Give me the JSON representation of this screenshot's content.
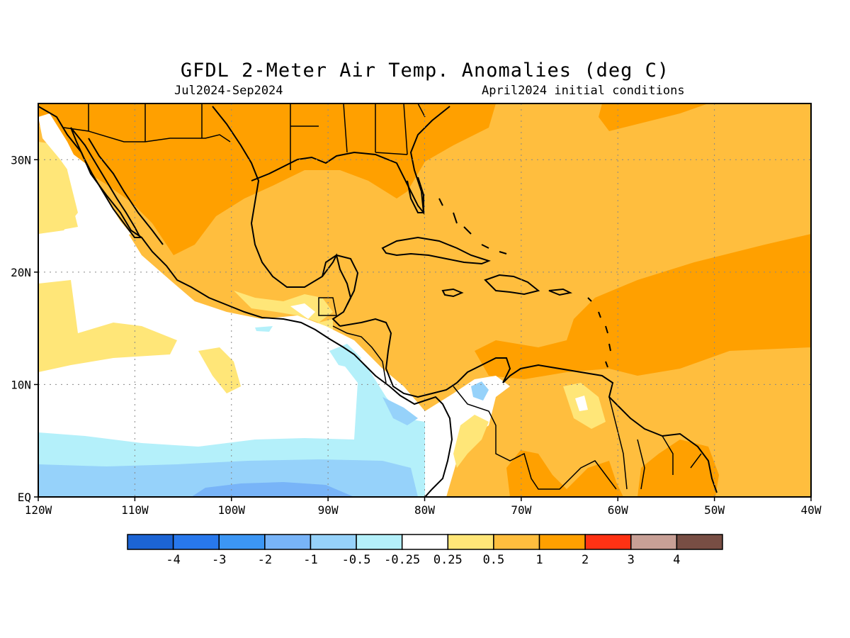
{
  "title": "GFDL 2-Meter Air Temp. Anomalies (deg C)",
  "period": "Jul2024-Sep2024",
  "initial_conditions": "April2024 initial conditions",
  "map": {
    "lon_range": [
      -120,
      -40
    ],
    "lat_range": [
      0,
      35
    ],
    "lon_ticks": [
      {
        "value": -120,
        "label": "120W"
      },
      {
        "value": -110,
        "label": "110W"
      },
      {
        "value": -100,
        "label": "100W"
      },
      {
        "value": -90,
        "label": "90W"
      },
      {
        "value": -80,
        "label": "80W"
      },
      {
        "value": -70,
        "label": "70W"
      },
      {
        "value": -60,
        "label": "60W"
      },
      {
        "value": -50,
        "label": "50W"
      },
      {
        "value": -40,
        "label": "40W"
      }
    ],
    "lat_ticks": [
      {
        "value": 0,
        "label": "EQ"
      },
      {
        "value": 10,
        "label": "10N"
      },
      {
        "value": 20,
        "label": "20N"
      },
      {
        "value": 30,
        "label": "30N"
      }
    ],
    "grid": "dotted"
  },
  "colorbar": {
    "colors": [
      "#1c64d4",
      "#2878ec",
      "#3c96f4",
      "#78b4f8",
      "#96d2fa",
      "#b4f0fa",
      "#ffffff",
      "#ffe678",
      "#ffbe3e",
      "#ffa000",
      "#ff3214",
      "#c8a096",
      "#784e44"
    ],
    "labels": [
      "-4",
      "-3",
      "-2",
      "-1",
      "-0.5",
      "-0.25",
      "0.25",
      "0.5",
      "1",
      "2",
      "3",
      "4"
    ]
  },
  "colors": {
    "near_zero": "#ffffff",
    "weak_warm": "#ffe678",
    "warm": "#ffbe3e",
    "strong_warm": "#ffa000",
    "weak_cool": "#b4f0fa",
    "cool": "#96d2fa",
    "cooler": "#78b4f8"
  }
}
